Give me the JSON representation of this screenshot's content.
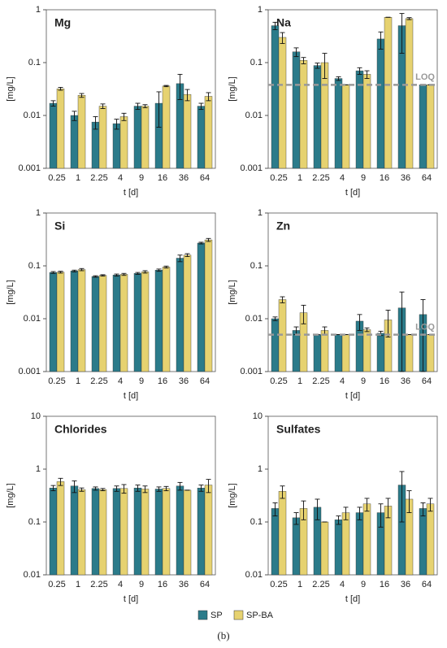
{
  "chart_data": [
    {
      "type": "bar",
      "title": "Mg",
      "xlabel": "t [d]",
      "ylabel": "[mg/L]",
      "yscale": "log",
      "categories": [
        "0.25",
        "1",
        "2.25",
        "4",
        "9",
        "16",
        "36",
        "64"
      ],
      "ylim": [
        0.001,
        1
      ],
      "yticks": [
        0.001,
        0.01,
        0.1,
        1
      ],
      "series": [
        {
          "values": [
            0.017,
            0.01,
            0.0075,
            0.007,
            0.015,
            0.017,
            0.04,
            0.015
          ],
          "errors": [
            0.002,
            0.002,
            0.002,
            0.0015,
            0.002,
            0.011,
            0.02,
            0.002
          ]
        },
        {
          "values": [
            0.032,
            0.024,
            0.015,
            0.0095,
            0.015,
            0.036,
            0.025,
            0.023
          ],
          "errors": [
            0.002,
            0.002,
            0.0015,
            0.0015,
            0.001,
            0.001,
            0.006,
            0.004
          ]
        }
      ]
    },
    {
      "type": "bar",
      "title": "Na",
      "xlabel": "t [d]",
      "ylabel": "[mg/L]",
      "yscale": "log",
      "categories": [
        "0.25",
        "1",
        "2.25",
        "4",
        "9",
        "16",
        "36",
        "64"
      ],
      "ylim": [
        0.001,
        1
      ],
      "yticks": [
        0.001,
        0.01,
        0.1,
        1
      ],
      "loq": {
        "label": "LOQ",
        "value": 0.038
      },
      "series": [
        {
          "values": [
            0.5,
            0.16,
            0.088,
            0.05,
            0.07,
            0.28,
            0.5,
            0.038
          ],
          "errors": [
            0.08,
            0.03,
            0.01,
            0.004,
            0.01,
            0.1,
            0.35,
            0
          ]
        },
        {
          "values": [
            0.3,
            0.11,
            0.1,
            0.038,
            0.06,
            0.72,
            0.68,
            0.038
          ],
          "errors": [
            0.07,
            0.015,
            0.05,
            0,
            0.01,
            0,
            0.03,
            0
          ]
        }
      ]
    },
    {
      "type": "bar",
      "title": "Si",
      "xlabel": "t [d]",
      "ylabel": "[mg/L]",
      "yscale": "log",
      "categories": [
        "0.25",
        "1",
        "2.25",
        "4",
        "9",
        "16",
        "36",
        "64"
      ],
      "ylim": [
        0.001,
        1
      ],
      "yticks": [
        0.001,
        0.01,
        0.1,
        1
      ],
      "series": [
        {
          "values": [
            0.075,
            0.08,
            0.063,
            0.067,
            0.072,
            0.083,
            0.14,
            0.27
          ],
          "errors": [
            0.003,
            0.003,
            0.002,
            0.003,
            0.003,
            0.004,
            0.02,
            0.01
          ]
        },
        {
          "values": [
            0.076,
            0.085,
            0.066,
            0.069,
            0.077,
            0.095,
            0.16,
            0.31
          ],
          "errors": [
            0.003,
            0.004,
            0.002,
            0.003,
            0.004,
            0.004,
            0.01,
            0.02
          ]
        }
      ]
    },
    {
      "type": "bar",
      "title": "Zn",
      "xlabel": "t [d]",
      "ylabel": "[mg/L]",
      "yscale": "log",
      "categories": [
        "0.25",
        "1",
        "2.25",
        "4",
        "9",
        "16",
        "36",
        "64"
      ],
      "ylim": [
        0.001,
        1
      ],
      "yticks": [
        0.001,
        0.01,
        0.1,
        1
      ],
      "loq": {
        "label": "LOQ",
        "value": 0.005
      },
      "series": [
        {
          "values": [
            0.01,
            0.006,
            0.005,
            0.005,
            0.009,
            0.0053,
            0.016,
            0.012
          ],
          "errors": [
            0.0008,
            0.001,
            0,
            0,
            0.003,
            0.0005,
            0.016,
            0.011
          ]
        },
        {
          "values": [
            0.023,
            0.013,
            0.006,
            0.005,
            0.0062,
            0.0095,
            0.005,
            0.005
          ],
          "errors": [
            0.003,
            0.005,
            0.001,
            0,
            0.0005,
            0.005,
            0,
            0
          ]
        }
      ]
    },
    {
      "type": "bar",
      "title": "Chlorides",
      "xlabel": "t [d]",
      "ylabel": "[mg/L]",
      "yscale": "log",
      "categories": [
        "0.25",
        "1",
        "2.25",
        "4",
        "9",
        "16",
        "36",
        "64"
      ],
      "ylim": [
        0.01,
        10
      ],
      "yticks": [
        0.01,
        0.1,
        1,
        10
      ],
      "series": [
        {
          "values": [
            0.44,
            0.48,
            0.43,
            0.43,
            0.44,
            0.42,
            0.48,
            0.44
          ],
          "errors": [
            0.05,
            0.12,
            0.03,
            0.05,
            0.06,
            0.04,
            0.08,
            0.06
          ]
        },
        {
          "values": [
            0.58,
            0.41,
            0.41,
            0.43,
            0.42,
            0.43,
            0.4,
            0.5
          ],
          "errors": [
            0.09,
            0.03,
            0.02,
            0.08,
            0.06,
            0.04,
            0,
            0.14
          ]
        }
      ]
    },
    {
      "type": "bar",
      "title": "Sulfates",
      "xlabel": "t [d]",
      "ylabel": "[mg/L]",
      "yscale": "log",
      "categories": [
        "0.25",
        "1",
        "2.25",
        "4",
        "9",
        "16",
        "36",
        "64"
      ],
      "ylim": [
        0.01,
        10
      ],
      "yticks": [
        0.01,
        0.1,
        1,
        10
      ],
      "series": [
        {
          "values": [
            0.18,
            0.12,
            0.19,
            0.11,
            0.15,
            0.15,
            0.5,
            0.18
          ],
          "errors": [
            0.05,
            0.03,
            0.08,
            0.02,
            0.04,
            0.07,
            0.4,
            0.05
          ]
        },
        {
          "values": [
            0.38,
            0.18,
            0.1,
            0.15,
            0.22,
            0.2,
            0.27,
            0.22
          ],
          "errors": [
            0.1,
            0.07,
            0,
            0.04,
            0.06,
            0.08,
            0.12,
            0.06
          ]
        }
      ]
    }
  ],
  "legend": [
    {
      "name": "SP",
      "color": "#2b7b8a"
    },
    {
      "name": "SP-BA",
      "color": "#e6d270"
    }
  ],
  "caption": "(b)"
}
